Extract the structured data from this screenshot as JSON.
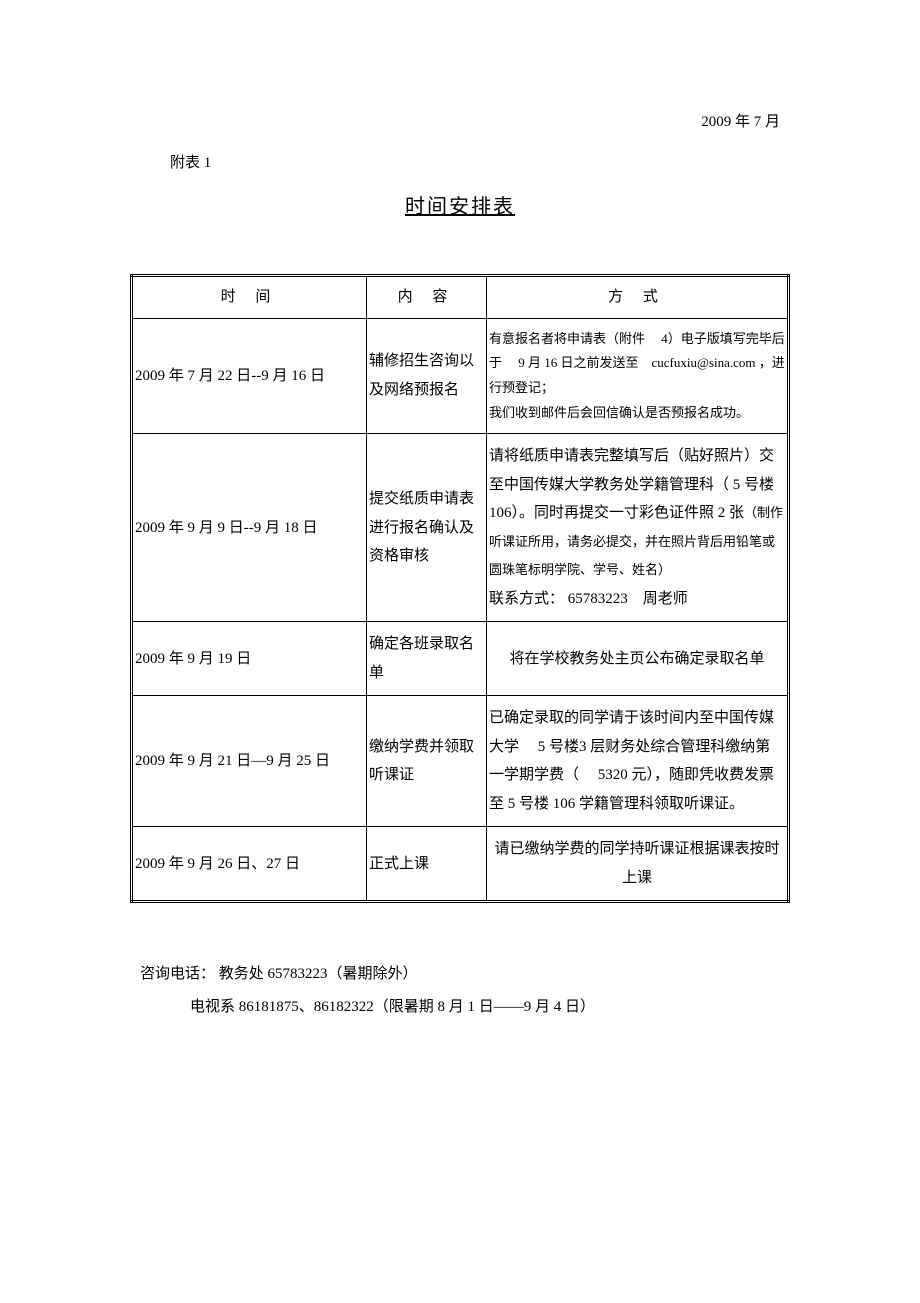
{
  "header": {
    "date": "2009 年 7 月",
    "attachment_label": "附表 1",
    "title": "时间安排表"
  },
  "table": {
    "headers": {
      "time": "时 间",
      "content": "内 容",
      "method": "方 式"
    },
    "rows": [
      {
        "time": "2009 年 7 月 22 日--9 月 16 日",
        "content": "辅修招生咨询以及网络预报名",
        "method": "有意报名者将申请表（附件  4）电子版填写完毕后于  9 月 16 日之前发送至 cucfuxiu@sina.com ，进行预登记；\n我们收到邮件后会回信确认是否预报名成功。",
        "method_small": true
      },
      {
        "time": "2009 年 9 月 9 日--9 月 18 日",
        "content": "提交纸质申请表进行报名确认及资格审核",
        "method": "请将纸质申请表完整填写后（贴好照片）交至中国传媒大学教务处学籍管理科（ 5 号楼 106）。同时再提交一寸彩色证件照 2 张（制作听课证所用，请务必提交，并在照片背后用铅笔或圆珠笔标明学院、学号、姓名）\n联系方式： 65783223 周老师"
      },
      {
        "time": "2009 年 9 月 19 日",
        "content": "确定各班录取名单",
        "method": "将在学校教务处主页公布确定录取名单",
        "center": true
      },
      {
        "time": "2009 年 9 月 21 日—9 月 25 日",
        "content": "缴纳学费并领取听课证",
        "method": "已确定录取的同学请于该时间内至中国传媒大学  5 号楼3 层财务处综合管理科缴纳第一学期学费（  5320 元），随即凭收费发票至 5 号楼 106 学籍管理科领取听课证。"
      },
      {
        "time": "2009 年 9 月 26 日、27 日",
        "content": "正式上课",
        "method": "请已缴纳学费的同学持听课证根据课表按时上课",
        "center": true
      }
    ]
  },
  "footer": {
    "line1": "咨询电话： 教务处 65783223（暑期除外）",
    "line2": "电视系 86181875、86182322（限暑期 8 月 1 日——9 月 4 日）"
  }
}
